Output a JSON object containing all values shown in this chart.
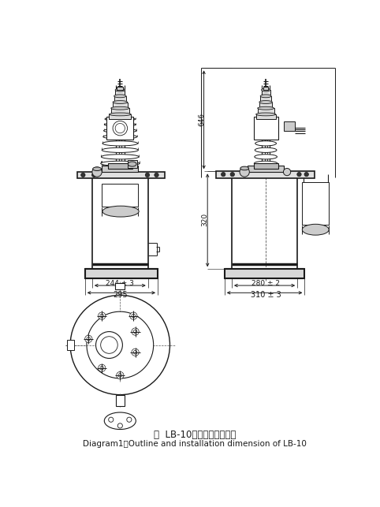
{
  "title_cn": "图  LB-10外形及安装尺寸图",
  "title_en": "Diagram1：Outline and installation dimension of LB-10",
  "dim_left_width1": "244 ± 3",
  "dim_left_width2": "295",
  "dim_right_width1": "280 ± 2",
  "dim_right_width2": "310 ± 3",
  "dim_right_height1": "646",
  "dim_right_height2": "320",
  "line_color": "#1a1a1a",
  "bg_color": "#ffffff",
  "fig_width": 4.82,
  "fig_height": 6.43
}
